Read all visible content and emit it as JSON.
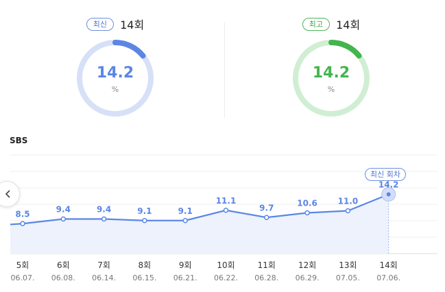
{
  "summary": {
    "latest": {
      "badge": "최신",
      "episode": "14회",
      "value": "14.2",
      "unit": "%",
      "ring_fraction": 0.142,
      "color": "#5b86e5",
      "track_color": "#d6e1f8"
    },
    "best": {
      "badge": "최고",
      "episode": "14회",
      "value": "14.2",
      "unit": "%",
      "ring_fraction": 0.142,
      "color": "#44b44f",
      "track_color": "#d0eed3"
    }
  },
  "channel": "SBS",
  "latest_tag": "최신 회차",
  "chart_data": {
    "type": "area",
    "x": [
      "5회",
      "6회",
      "7회",
      "8회",
      "9회",
      "10회",
      "11회",
      "12회",
      "13회",
      "14회"
    ],
    "dates": [
      "06.07.",
      "06.08.",
      "06.14.",
      "06.15.",
      "06.21.",
      "06.22.",
      "06.28.",
      "06.29.",
      "07.05.",
      "07.06."
    ],
    "values": [
      8.5,
      9.4,
      9.4,
      9.1,
      9.1,
      11.1,
      9.7,
      10.6,
      11.0,
      14.2
    ],
    "value_labels": [
      "8.5",
      "9.4",
      "9.4",
      "9.1",
      "9.1",
      "11.1",
      "9.7",
      "10.6",
      "11.0",
      "14.2"
    ],
    "highlight_index": 9,
    "line_color": "#5b86e5",
    "fill_color": "#edf2fc",
    "grid": true
  }
}
